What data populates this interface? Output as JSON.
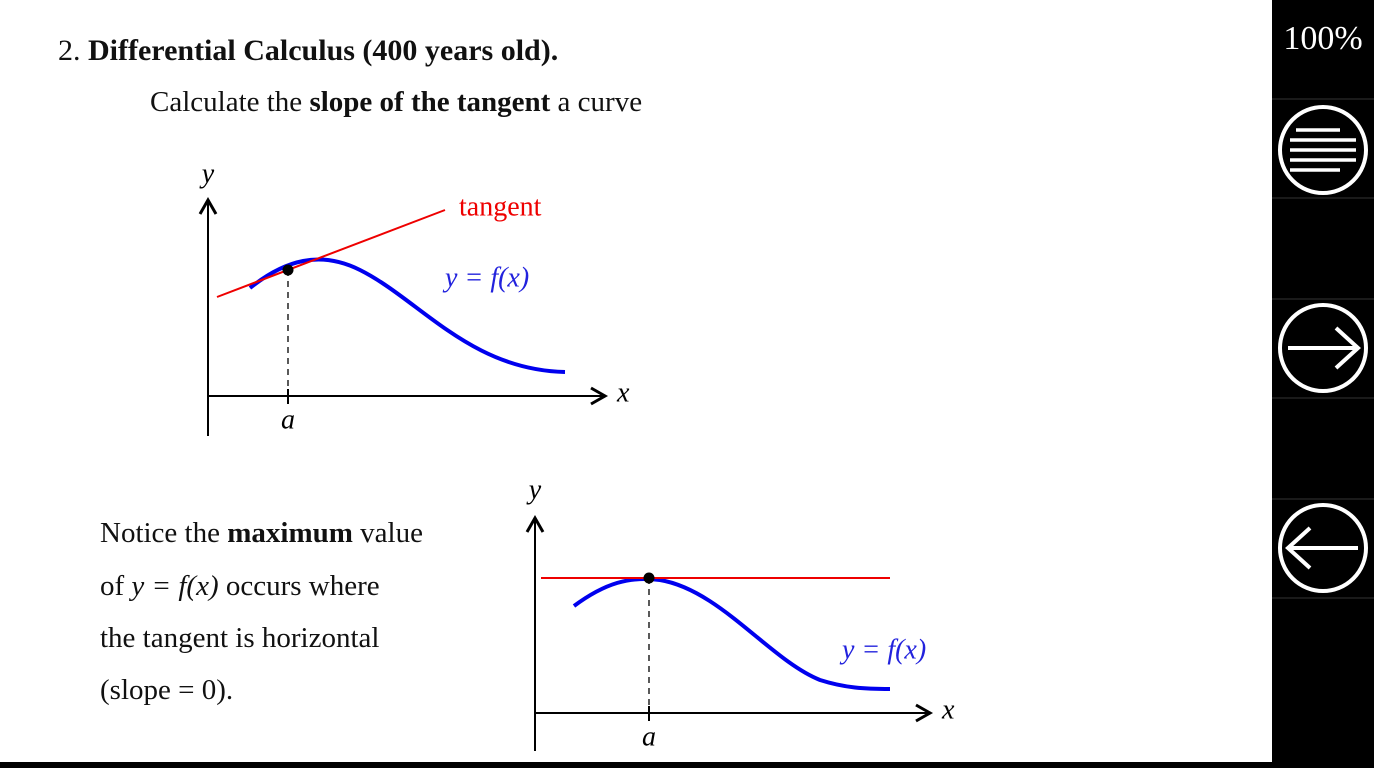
{
  "item": {
    "number": "2.",
    "title": "Differential Calculus (400 years old)."
  },
  "intro": [
    "Calculate the",
    "slope of the tangent",
    "a curve"
  ],
  "figure1": {
    "y_label": "y",
    "x_label": "x",
    "point_label": "a",
    "tangent_label": "tangent",
    "curve_label": "y = f(x)"
  },
  "notice": {
    "lines": [
      [
        "Notice the",
        "maximum",
        "value"
      ],
      [
        "of",
        "y = f(x)",
        "occurs where"
      ],
      [
        "the tangent is horizontal"
      ],
      [
        "(slope = 0)."
      ]
    ]
  },
  "figure2": {
    "y_label": "y",
    "x_label": "x",
    "point_label": "a",
    "curve_label": "y = f(x)"
  },
  "sidebar": {
    "zoom": "100%"
  }
}
